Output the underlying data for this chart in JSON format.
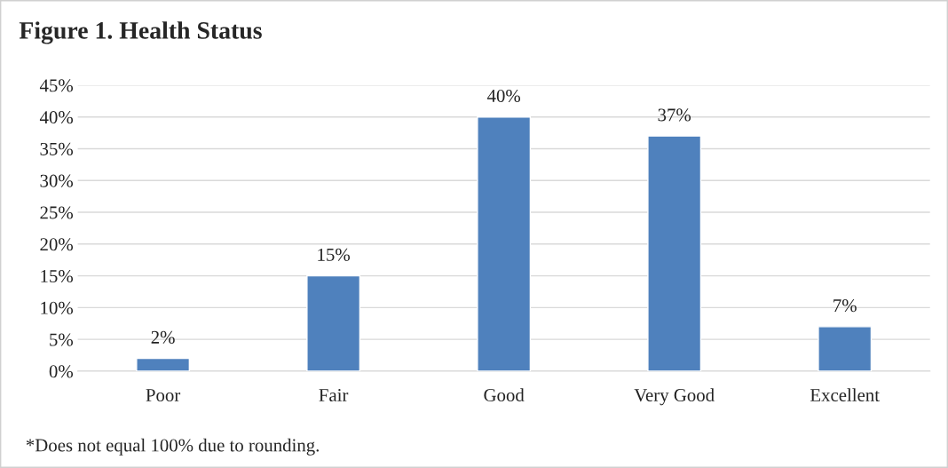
{
  "chart_data": {
    "type": "bar",
    "title": "Figure 1. Health Status",
    "categories": [
      "Poor",
      "Fair",
      "Good",
      "Very Good",
      "Excellent"
    ],
    "series": [
      {
        "color": "#4f81bd",
        "values": [
          2,
          15,
          40,
          37,
          7
        ]
      }
    ],
    "value_labels": [
      "2%",
      "15%",
      "40%",
      "37%",
      "7%"
    ],
    "ylim": [
      0,
      45
    ],
    "yticks": [
      {
        "value": 0,
        "label": "0%"
      },
      {
        "value": 5,
        "label": "5%"
      },
      {
        "value": 10,
        "label": "10%"
      },
      {
        "value": 15,
        "label": "15%"
      },
      {
        "value": 20,
        "label": "20%"
      },
      {
        "value": 25,
        "label": "25%"
      },
      {
        "value": 30,
        "label": "30%"
      },
      {
        "value": 35,
        "label": "35%"
      },
      {
        "value": 40,
        "label": "40%"
      },
      {
        "value": 45,
        "label": "45%"
      }
    ],
    "grid": "y",
    "annotations": [
      "*Does not equal 100% due to rounding."
    ]
  }
}
